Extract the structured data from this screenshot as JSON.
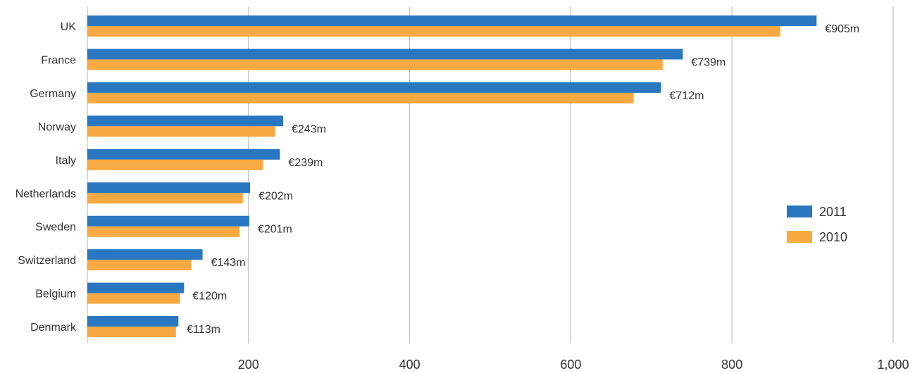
{
  "chart_data": {
    "type": "bar",
    "orientation": "horizontal",
    "categories": [
      "UK",
      "France",
      "Germany",
      "Norway",
      "Italy",
      "Netherlands",
      "Sweden",
      "Switzerland",
      "Belgium",
      "Denmark"
    ],
    "series": [
      {
        "name": "2011",
        "color": "#2a77c1",
        "values": [
          905,
          739,
          712,
          243,
          239,
          202,
          201,
          143,
          120,
          113
        ]
      },
      {
        "name": "2010",
        "color": "#f9a941",
        "values": [
          860,
          714,
          678,
          233,
          218,
          193,
          189,
          129,
          115,
          110
        ]
      }
    ],
    "value_labels": [
      "€905m",
      "€739m",
      "€712m",
      "€243m",
      "€239m",
      "€202m",
      "€201m",
      "€143m",
      "€120m",
      "€113m"
    ],
    "x_ticks": [
      200,
      400,
      600,
      800,
      1000
    ],
    "x_tick_labels": [
      "200",
      "400",
      "600",
      "800",
      "1,000"
    ],
    "xlim": [
      0,
      1000
    ],
    "grid": true,
    "legend_position": "right"
  }
}
